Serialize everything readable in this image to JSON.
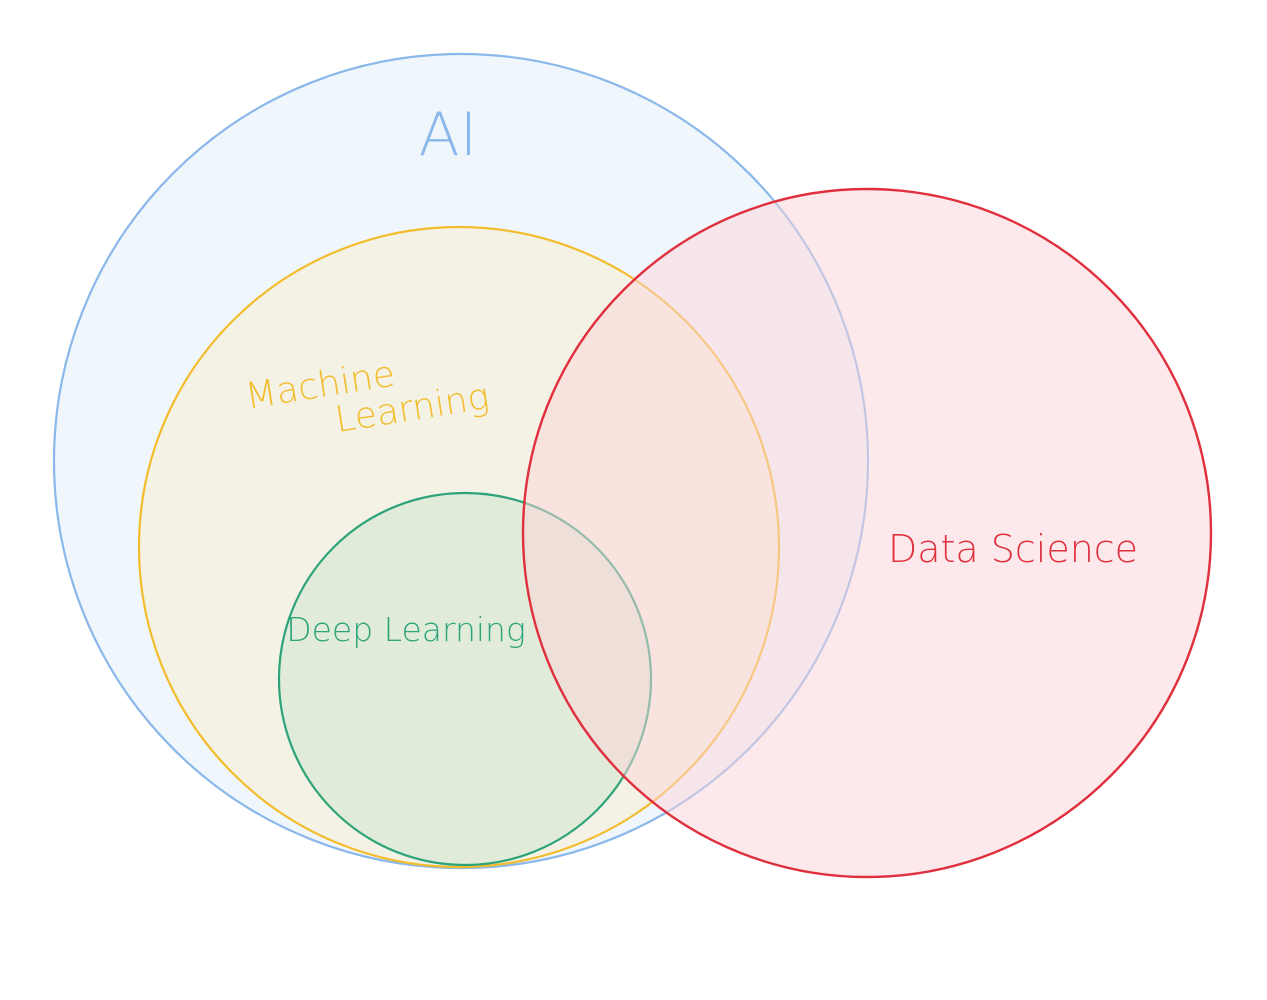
{
  "diagram": {
    "type": "venn",
    "sets": [
      {
        "id": "ai",
        "label": "AI",
        "stroke": "#8ab8ea",
        "fill": "#e4f0f9",
        "contains": [
          "machine-learning"
        ]
      },
      {
        "id": "machine-learning",
        "label": "Machine Learning",
        "label_lines": [
          "Machine",
          "Learning"
        ],
        "stroke": "#f2bc2c",
        "fill": "#f6efd9",
        "contains": [
          "deep-learning"
        ]
      },
      {
        "id": "deep-learning",
        "label": "Deep Learning",
        "stroke": "#2ea37a",
        "fill": "#d6e8d2"
      },
      {
        "id": "data-science",
        "label": "Data Science",
        "stroke": "#e0303e",
        "fill": "#fcd3da",
        "overlaps": [
          "ai",
          "machine-learning",
          "deep-learning"
        ]
      }
    ]
  }
}
